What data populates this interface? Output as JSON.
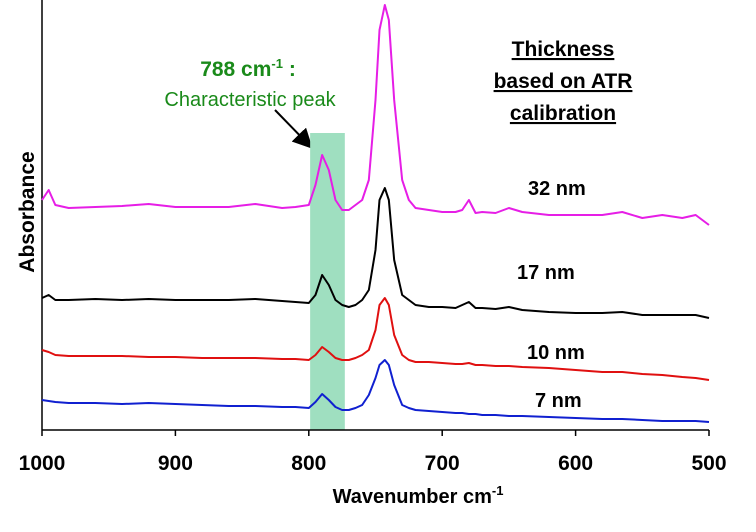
{
  "chart_data": {
    "type": "line",
    "x_label": "Wavenumber cm",
    "x_label_sup": "-1",
    "y_label": "Absorbance",
    "annotation": {
      "main": "788 cm",
      "sup": "-1",
      "tail": " :",
      "sub": "Characteristic peak",
      "color": "#1a8a1a"
    },
    "highlight": {
      "range": [
        799,
        773
      ],
      "color": "#9fdfc0"
    },
    "legend_title": [
      "Thickness",
      "based on ATR",
      "calibration"
    ],
    "xlim": [
      1000,
      500
    ],
    "xticks": [
      1000,
      900,
      800,
      700,
      600,
      500
    ],
    "ylim": [
      0,
      430
    ],
    "x": [
      1000,
      995,
      990,
      980,
      960,
      940,
      920,
      900,
      880,
      860,
      840,
      820,
      810,
      800,
      795,
      790,
      785,
      780,
      775,
      770,
      765,
      760,
      755,
      750,
      747,
      743,
      740,
      736,
      730,
      725,
      720,
      710,
      700,
      690,
      685,
      680,
      675,
      670,
      660,
      650,
      640,
      620,
      600,
      580,
      565,
      550,
      535,
      520,
      510,
      500
    ],
    "series": [
      {
        "name": "32 nm",
        "color": "#e61ee6",
        "values": [
          230,
          240,
          225,
          222,
          223,
          224,
          226,
          223,
          223,
          223,
          226,
          222,
          223,
          225,
          245,
          275,
          260,
          230,
          220,
          220,
          225,
          230,
          250,
          330,
          400,
          425,
          410,
          330,
          250,
          230,
          222,
          220,
          218,
          218,
          220,
          230,
          217,
          218,
          217,
          222,
          218,
          215,
          215,
          215,
          218,
          212,
          215,
          212,
          215,
          205
        ]
      },
      {
        "name": "17 nm",
        "color": "#000000",
        "values": [
          132,
          135,
          130,
          130,
          131,
          130,
          131,
          130,
          130,
          130,
          131,
          129,
          128,
          127,
          135,
          155,
          145,
          130,
          125,
          123,
          125,
          130,
          140,
          180,
          230,
          242,
          230,
          170,
          135,
          130,
          125,
          123,
          123,
          122,
          125,
          128,
          122,
          122,
          121,
          123,
          120,
          118,
          117,
          117,
          118,
          115,
          115,
          115,
          115,
          112
        ]
      },
      {
        "name": "10 nm",
        "color": "#e01010",
        "values": [
          80,
          78,
          75,
          74,
          74,
          74,
          73,
          73,
          72,
          72,
          72,
          71,
          71,
          70,
          75,
          83,
          78,
          72,
          70,
          70,
          72,
          75,
          80,
          100,
          125,
          132,
          125,
          95,
          75,
          70,
          68,
          68,
          67,
          66,
          66,
          67,
          65,
          65,
          64,
          64,
          63,
          62,
          60,
          58,
          58,
          56,
          55,
          53,
          52,
          50
        ]
      },
      {
        "name": "7 nm",
        "color": "#1020d0",
        "values": [
          30,
          29,
          28,
          27,
          27,
          26,
          27,
          26,
          25,
          24,
          24,
          23,
          23,
          22,
          28,
          36,
          30,
          23,
          20,
          20,
          22,
          25,
          35,
          52,
          65,
          70,
          65,
          45,
          25,
          22,
          20,
          19,
          18,
          17,
          17,
          16,
          16,
          15,
          15,
          14,
          14,
          13,
          12,
          11,
          11,
          10,
          9,
          9,
          9,
          8
        ]
      }
    ]
  }
}
